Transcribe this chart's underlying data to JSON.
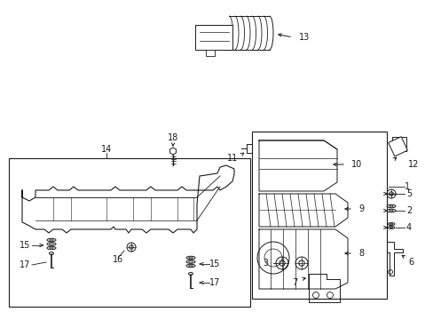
{
  "bg_color": "#ffffff",
  "line_color": "#1a1a1a",
  "lw": 0.8,
  "fs": 7.0,
  "fig_width": 4.89,
  "fig_height": 3.6,
  "dpi": 100
}
